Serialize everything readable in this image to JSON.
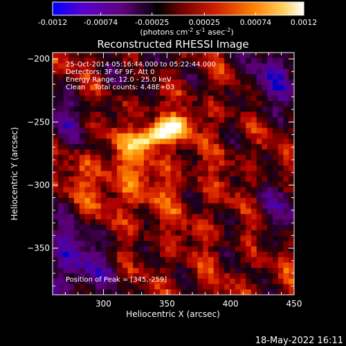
{
  "chart_data": {
    "type": "heatmap",
    "title": "Reconstructed RHESSI Image",
    "xlabel": "Heliocentric X (arcsec)",
    "ylabel": "Heliocentric Y (arcsec)",
    "xlim": [
      260,
      450
    ],
    "ylim": [
      -387,
      -195
    ],
    "xticks": [
      300,
      350,
      400,
      450
    ],
    "yticks": [
      -200,
      -250,
      -300,
      -350
    ],
    "colorbar": {
      "min": -0.0012,
      "max": 0.0012,
      "ticks": [
        "-0.0012",
        "-0.00074",
        "-0.00025",
        "0.00025",
        "0.00074",
        "0.0012"
      ],
      "unit_prefix": "(photons cm",
      "unit_exp1": "-2",
      "unit_mid": " s",
      "unit_exp2": "-1",
      "unit_mid2": " asec",
      "unit_exp3": "-2",
      "unit_suffix": ")"
    },
    "annotations": [
      "25-Oct-2014 05:16:44.000 to 05:22:44.000",
      "Detectors: 3F 6F 9F, Att 0",
      "Energy Range: 12.0 - 25.0 keV",
      "Clean    Total counts: 4.48E+03"
    ],
    "peak_label": "Position of Peak = [345,-259]",
    "peak": {
      "x": 345,
      "y": -259
    },
    "colormap": [
      "#0000ff",
      "#9000a0",
      "#000000",
      "#b00000",
      "#ff4000",
      "#ffa000",
      "#ffff80",
      "#ffffff"
    ]
  },
  "footer": {
    "timestamp": "18-May-2022 16:11"
  }
}
